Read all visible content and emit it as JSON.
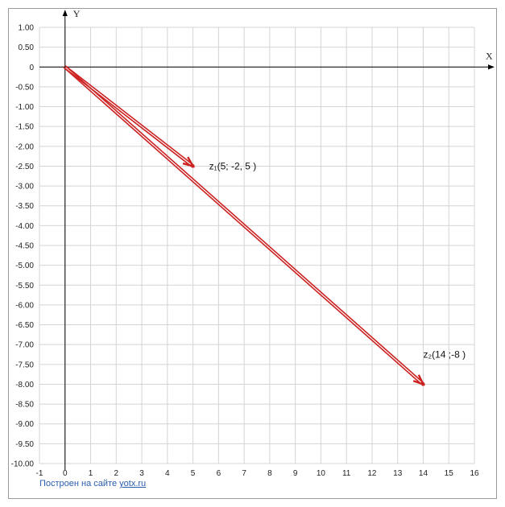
{
  "colors": {
    "vector": "#cc2222",
    "grid": "#d4d4d4",
    "axis": "#000000",
    "frame": "#9a9a9a",
    "footer_link": "#2a5db0"
  },
  "chart_data": {
    "type": "line",
    "xlabel": "X",
    "ylabel": "Y",
    "xlim": [
      -1,
      16
    ],
    "ylim": [
      -10,
      1
    ],
    "grid": true,
    "x_ticks": [
      "-1",
      "0",
      "1",
      "2",
      "3",
      "4",
      "5",
      "6",
      "7",
      "8",
      "9",
      "10",
      "11",
      "12",
      "13",
      "14",
      "15",
      "16"
    ],
    "y_ticks": [
      "1.00",
      "0.50",
      "0",
      "-0.50",
      "-1.00",
      "-1.50",
      "-2.00",
      "-2.50",
      "-3.00",
      "-3.50",
      "-4.00",
      "-4.50",
      "-5.00",
      "-5.50",
      "-6.00",
      "-6.50",
      "-7.00",
      "-7.50",
      "-8.00",
      "-8.50",
      "-9.00",
      "-9.50",
      "-10.00"
    ],
    "series": [
      {
        "label": "z₁(5; -2, 5 )",
        "x": [
          0,
          5
        ],
        "y": [
          0,
          -2.5
        ]
      },
      {
        "label": "z₂(14 ;-8  )",
        "x": [
          0,
          14
        ],
        "y": [
          0,
          -8
        ]
      }
    ]
  },
  "footer": {
    "prefix": "Построен на сайте ",
    "link": "yotx.ru"
  }
}
